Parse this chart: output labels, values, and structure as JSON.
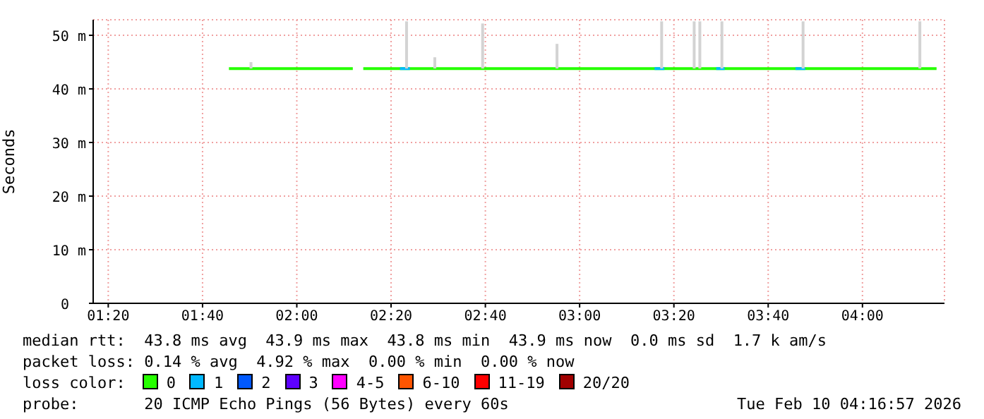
{
  "chart_data": {
    "type": "line",
    "ylabel": "Seconds",
    "legend_title": "loss color:",
    "legend": "bottom",
    "grid": true,
    "marker": "none",
    "line_style": "solid",
    "xlim": [
      1.28,
      4.29
    ],
    "xticks": [
      {
        "value": 1.3333,
        "label": "01:20"
      },
      {
        "value": 1.6667,
        "label": "01:40"
      },
      {
        "value": 2,
        "label": "02:00"
      },
      {
        "value": 2.3333,
        "label": "02:20"
      },
      {
        "value": 2.6667,
        "label": "02:40"
      },
      {
        "value": 3,
        "label": "03:00"
      },
      {
        "value": 3.3333,
        "label": "03:20"
      },
      {
        "value": 3.6667,
        "label": "03:40"
      },
      {
        "value": 4,
        "label": "04:00"
      }
    ],
    "ylim": [
      0,
      52.9
    ],
    "yticks": [
      0,
      {
        "value": 10,
        "label": "10 m"
      },
      {
        "value": 20,
        "label": "20 m"
      },
      {
        "value": 30,
        "label": "30 m"
      },
      {
        "value": 40,
        "label": "40 m"
      },
      {
        "value": 50,
        "label": "50 m"
      }
    ],
    "series": [
      {
        "type": "bar",
        "color": "#d3d3d3",
        "base": [
          43.8,
          43.8,
          43.8,
          43.8,
          43.8,
          43.8,
          43.8,
          43.8,
          43.8,
          43.8,
          43.8
        ],
        "x": [
          1.838,
          2.388,
          2.488,
          2.657,
          2.92,
          3.29,
          3.405,
          3.425,
          3.503,
          3.79,
          4.203
        ],
        "values": [
          1.2,
          8.8,
          2.1,
          8.4,
          4.6,
          8.8,
          8.8,
          8.8,
          8.8,
          8.8,
          8.8
        ]
      },
      {
        "name": "0",
        "color": "#26ff00",
        "x": [
          1.76,
          2.198,
          2.2,
          2.235,
          4.262
        ],
        "values": [
          43.8,
          43.8,
          null,
          43.8,
          43.8
        ]
      },
      {
        "name": "1",
        "color": "#00b8ff",
        "x": [
          2.365,
          2.4,
          2.41,
          3.265,
          3.3,
          3.31,
          3.483,
          3.513,
          3.52,
          3.763,
          3.798
        ],
        "values": [
          43.8,
          43.8,
          null,
          43.8,
          43.8,
          null,
          43.8,
          43.8,
          null,
          43.8,
          43.8
        ]
      },
      {
        "name": "2",
        "color": "#0059ff"
      },
      {
        "name": "3",
        "color": "#5e00ff"
      },
      {
        "name": "4-5",
        "color": "#ff00ff"
      },
      {
        "name": "6-10",
        "color": "#ff5500"
      },
      {
        "name": "11-19",
        "color": "#ff0000"
      },
      {
        "name": "20/20",
        "color": "#a10000"
      }
    ],
    "annotations": [
      "median rtt:  43.8 ms avg  43.9 ms max  43.8 ms min  43.9 ms now  0.0 ms sd  1.7 k am/s",
      "packet loss: 0.14 % avg  4.92 % max  0.00 % min  0.00 % now",
      "probe:       20 ICMP Echo Pings (56 Bytes) every 60s",
      "Tue Feb 10 04:16:57 2026"
    ]
  }
}
